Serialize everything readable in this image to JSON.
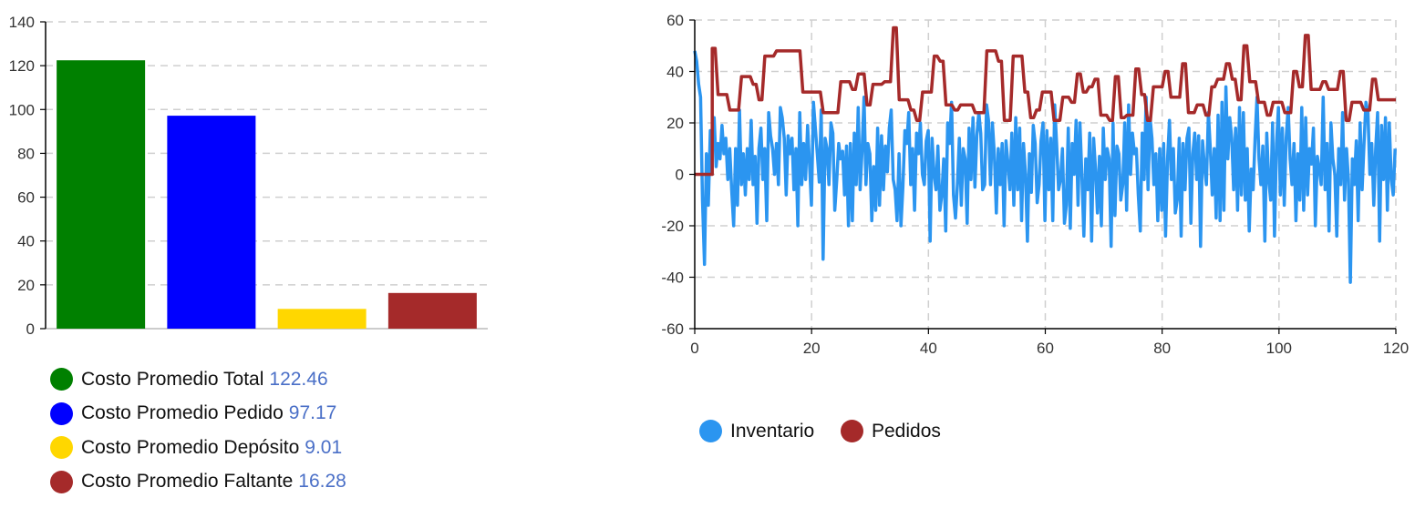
{
  "chart_data": [
    {
      "type": "bar",
      "categories": [
        "Costo Promedio Total",
        "Costo Promedio Pedido",
        "Costo Promedio Depósito",
        "Costo Promedio Faltante"
      ],
      "values": [
        122.46,
        97.17,
        9.01,
        16.28
      ],
      "value_labels": [
        "122.46",
        "97.17",
        "9.01",
        "16.28"
      ],
      "colors": [
        "#008000",
        "#0000ff",
        "#ffd700",
        "#a52a2a"
      ],
      "ylim": [
        0,
        140
      ],
      "yticks": [
        "0",
        "20",
        "40",
        "60",
        "80",
        "100",
        "120",
        "140"
      ],
      "grid": true,
      "legend": "bottom-left"
    },
    {
      "type": "line",
      "xlim": [
        0,
        120
      ],
      "ylim": [
        -60,
        60
      ],
      "xticks": [
        "0",
        "20",
        "40",
        "60",
        "80",
        "100",
        "120"
      ],
      "yticks": [
        "-60",
        "-40",
        "-20",
        "0",
        "20",
        "40",
        "60"
      ],
      "grid": true,
      "legend": "bottom-left",
      "series": [
        {
          "name": "Inventario",
          "color": "#2b95f0",
          "values": [
            48,
            44,
            35,
            30,
            -10,
            -35,
            8,
            -12,
            17,
            15,
            22,
            3,
            12,
            6,
            19,
            8,
            14,
            -2,
            10,
            -6,
            -20,
            10,
            -12,
            25,
            -4,
            8,
            -8,
            10,
            -2,
            21,
            -4,
            7,
            -19,
            10,
            18,
            -2,
            10,
            -18,
            24,
            15,
            10,
            0,
            12,
            -4,
            26,
            22,
            14,
            -8,
            15,
            8,
            14,
            -6,
            10,
            -20,
            24,
            -4,
            12,
            -2,
            19,
            4,
            -12,
            28,
            18,
            8,
            -3,
            25,
            -33,
            14,
            10,
            -4,
            20,
            16,
            -14,
            -2,
            12,
            6,
            9,
            -8,
            11,
            -20,
            12,
            -18,
            16,
            -4,
            26,
            -6,
            9,
            30,
            -4,
            12,
            8,
            -18,
            3,
            -14,
            18,
            -12,
            15,
            -6,
            11,
            1,
            18,
            25,
            -2,
            -6,
            -18,
            8,
            -20,
            -5,
            17,
            12,
            24,
            -4,
            10,
            -14,
            16,
            8,
            20,
            0,
            -4,
            13,
            17,
            -26,
            14,
            0,
            -6,
            11,
            -14,
            -8,
            6,
            -22,
            20,
            12,
            28,
            -8,
            -17,
            -4,
            14,
            -12,
            10,
            6,
            -19,
            18,
            -2,
            22,
            -5,
            15,
            24,
            16,
            -6,
            -4,
            27,
            21,
            -4,
            20,
            8,
            -15,
            10,
            -4,
            12,
            -20,
            13,
            4,
            -6,
            16,
            -12,
            22,
            -6,
            18,
            -18,
            12,
            0,
            -26,
            8,
            -7,
            19,
            12,
            -11,
            -4,
            13,
            20,
            -18,
            17,
            -6,
            14,
            -18,
            27,
            12,
            -6,
            -2,
            10,
            -19,
            -12,
            18,
            -21,
            12,
            0,
            21,
            -12,
            20,
            -1,
            -24,
            6,
            -6,
            16,
            -26,
            14,
            2,
            -15,
            7,
            -20,
            18,
            -2,
            10,
            6,
            -28,
            20,
            -16,
            11,
            8,
            -10,
            -4,
            20,
            -14,
            27,
            0,
            16,
            8,
            10,
            -8,
            -22,
            16,
            -2,
            30,
            -6,
            22,
            14,
            -4,
            8,
            -18,
            10,
            -14,
            12,
            -24,
            6,
            21,
            -2,
            10,
            -15,
            -10,
            14,
            -24,
            12,
            -6,
            14,
            18,
            -19,
            8,
            16,
            -2,
            15,
            -28,
            13,
            3,
            -4,
            24,
            10,
            -8,
            10,
            -17,
            23,
            -18,
            28,
            -14,
            34,
            6,
            22,
            14,
            -6,
            18,
            -14,
            26,
            -8,
            24,
            -10,
            10,
            -22,
            2,
            -6,
            14,
            30,
            6,
            -4,
            11,
            -26,
            16,
            -2,
            -10,
            20,
            -24,
            12,
            26,
            -8,
            18,
            -12,
            14,
            26,
            6,
            -4,
            12,
            -18,
            8,
            -10,
            26,
            -14,
            22,
            -8,
            10,
            4,
            18,
            -20,
            7,
            2,
            -4,
            30,
            -6,
            12,
            -22,
            20,
            6,
            0,
            -24,
            10,
            -4,
            24,
            -10,
            10,
            -2,
            -42,
            6,
            -4,
            13,
            -18,
            20,
            -6,
            12,
            28,
            24,
            0,
            12,
            -12,
            10,
            24,
            -26,
            19,
            -2,
            22,
            -14,
            20,
            -2,
            -8,
            10,
            -4,
            -6,
            20,
            -8,
            12,
            -6
          ],
          "x_step": 0.333
        },
        {
          "name": "Pedidos",
          "color": "#a52a2a",
          "points": [
            [
              0,
              0
            ],
            [
              3,
              0
            ],
            [
              3,
              49
            ],
            [
              3.5,
              49
            ],
            [
              4,
              31
            ],
            [
              5.5,
              31
            ],
            [
              6,
              25
            ],
            [
              7.5,
              25
            ],
            [
              8,
              38
            ],
            [
              9.5,
              38
            ],
            [
              10,
              35
            ],
            [
              10.5,
              35
            ],
            [
              11,
              29
            ],
            [
              11.5,
              29
            ],
            [
              12,
              46
            ],
            [
              13.5,
              46
            ],
            [
              14,
              48
            ],
            [
              18,
              48
            ],
            [
              18.5,
              32
            ],
            [
              21.5,
              32
            ],
            [
              22,
              24
            ],
            [
              24.5,
              24
            ],
            [
              25,
              36
            ],
            [
              26.5,
              36
            ],
            [
              27,
              33
            ],
            [
              27.5,
              33
            ],
            [
              28,
              39
            ],
            [
              29,
              39
            ],
            [
              29.5,
              27
            ],
            [
              30,
              27
            ],
            [
              30.5,
              35
            ],
            [
              32,
              35
            ],
            [
              32.5,
              36
            ],
            [
              33.5,
              36
            ],
            [
              34,
              57
            ],
            [
              34.5,
              57
            ],
            [
              35,
              29
            ],
            [
              36.5,
              29
            ],
            [
              37,
              25
            ],
            [
              37.5,
              25
            ],
            [
              38,
              21
            ],
            [
              38.5,
              21
            ],
            [
              39,
              32
            ],
            [
              40.5,
              32
            ],
            [
              41,
              46
            ],
            [
              41.5,
              46
            ],
            [
              42,
              44
            ],
            [
              42.5,
              44
            ],
            [
              43,
              27
            ],
            [
              44,
              27
            ],
            [
              44.5,
              25
            ],
            [
              45,
              25
            ],
            [
              45.5,
              27
            ],
            [
              47.5,
              27
            ],
            [
              48,
              24
            ],
            [
              49.5,
              24
            ],
            [
              50,
              48
            ],
            [
              51.5,
              48
            ],
            [
              52,
              44
            ],
            [
              52.5,
              44
            ],
            [
              53,
              21
            ],
            [
              54,
              21
            ],
            [
              54.5,
              46
            ],
            [
              56,
              46
            ],
            [
              56.5,
              32
            ],
            [
              57,
              32
            ],
            [
              57.5,
              22
            ],
            [
              58,
              22
            ],
            [
              58.5,
              25
            ],
            [
              59,
              25
            ],
            [
              59.5,
              32
            ],
            [
              61,
              32
            ],
            [
              61.5,
              21
            ],
            [
              62.5,
              21
            ],
            [
              63,
              30
            ],
            [
              64,
              30
            ],
            [
              64.5,
              28
            ],
            [
              65,
              28
            ],
            [
              65.5,
              39
            ],
            [
              66,
              39
            ],
            [
              66.5,
              32
            ],
            [
              67,
              32
            ],
            [
              67.5,
              34
            ],
            [
              68,
              34
            ],
            [
              68.5,
              37
            ],
            [
              69,
              37
            ],
            [
              69.5,
              23
            ],
            [
              70.5,
              23
            ],
            [
              71,
              21
            ],
            [
              71.5,
              21
            ],
            [
              72,
              38
            ],
            [
              72.5,
              38
            ],
            [
              73,
              22
            ],
            [
              73.5,
              22
            ],
            [
              74,
              23
            ],
            [
              75,
              23
            ],
            [
              75.5,
              41
            ],
            [
              76,
              41
            ],
            [
              76.5,
              31
            ],
            [
              77,
              31
            ],
            [
              77.5,
              21
            ],
            [
              78,
              21
            ],
            [
              78.5,
              34
            ],
            [
              80,
              34
            ],
            [
              80.5,
              40
            ],
            [
              81,
              40
            ],
            [
              81.5,
              30
            ],
            [
              83,
              30
            ],
            [
              83.5,
              43
            ],
            [
              84,
              43
            ],
            [
              84.5,
              24
            ],
            [
              85.5,
              24
            ],
            [
              86,
              27
            ],
            [
              87,
              27
            ],
            [
              87.5,
              23
            ],
            [
              88,
              23
            ],
            [
              88.5,
              34
            ],
            [
              89,
              34
            ],
            [
              89.5,
              37
            ],
            [
              90.5,
              37
            ],
            [
              91,
              43
            ],
            [
              91.5,
              43
            ],
            [
              92,
              37
            ],
            [
              92.5,
              37
            ],
            [
              93,
              29
            ],
            [
              93.5,
              29
            ],
            [
              94,
              50
            ],
            [
              94.5,
              50
            ],
            [
              95,
              36
            ],
            [
              96,
              36
            ],
            [
              96.5,
              28
            ],
            [
              97.5,
              28
            ],
            [
              98,
              23
            ],
            [
              98.5,
              23
            ],
            [
              99,
              28
            ],
            [
              100.5,
              28
            ],
            [
              101,
              24
            ],
            [
              102,
              24
            ],
            [
              102.5,
              40
            ],
            [
              103,
              40
            ],
            [
              103.5,
              34
            ],
            [
              104,
              34
            ],
            [
              104.5,
              54
            ],
            [
              105,
              54
            ],
            [
              105.5,
              33
            ],
            [
              107,
              33
            ],
            [
              107.5,
              36
            ],
            [
              108,
              36
            ],
            [
              108.5,
              33
            ],
            [
              110,
              33
            ],
            [
              110.5,
              40
            ],
            [
              111,
              40
            ],
            [
              111.5,
              21
            ],
            [
              112,
              21
            ],
            [
              112.5,
              28
            ],
            [
              114,
              28
            ],
            [
              114.5,
              25
            ],
            [
              115.5,
              25
            ],
            [
              116,
              37
            ],
            [
              116.5,
              37
            ],
            [
              117,
              29
            ],
            [
              120,
              29
            ]
          ]
        }
      ]
    }
  ]
}
